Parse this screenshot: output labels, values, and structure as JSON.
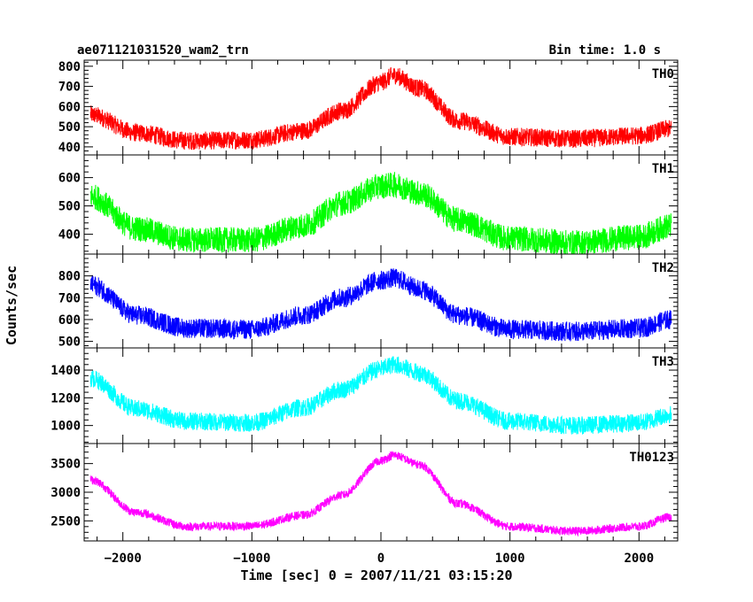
{
  "header": {
    "title": "ae071121031520_wam2_trn",
    "bin_time": "Bin time: 1.0 s"
  },
  "chart_data": {
    "type": "line",
    "xlabel": "Time [sec] 0 = 2007/11/21 03:15:20",
    "ylabel": "Counts/sec",
    "xlim": [
      -2300,
      2300
    ],
    "xticks": [
      -2000,
      -1000,
      0,
      1000,
      2000
    ],
    "xtick_labels": [
      "−2000",
      "−1000",
      "0",
      "1000",
      "2000"
    ],
    "x_range": [
      -2250,
      2250
    ],
    "peak_x": 100,
    "panels": [
      {
        "name": "TH0",
        "color": "#ff0000",
        "ylim": [
          360,
          830
        ],
        "yticks": [
          400,
          500,
          600,
          700,
          800
        ],
        "ytick_labels": [
          "400",
          "500",
          "600",
          "700",
          "800"
        ],
        "baseline": 430,
        "peak": 755,
        "start": 560,
        "end": 480,
        "noise": 45,
        "profile": [
          [
            -2250,
            560
          ],
          [
            -1900,
            470
          ],
          [
            -1500,
            430
          ],
          [
            -1000,
            435
          ],
          [
            -600,
            480
          ],
          [
            -300,
            580
          ],
          [
            0,
            720
          ],
          [
            100,
            755
          ],
          [
            300,
            690
          ],
          [
            600,
            530
          ],
          [
            1000,
            450
          ],
          [
            1500,
            440
          ],
          [
            2000,
            455
          ],
          [
            2250,
            490
          ]
        ]
      },
      {
        "name": "TH1",
        "color": "#00ff00",
        "ylim": [
          330,
          680
        ],
        "yticks": [
          400,
          500,
          600
        ],
        "ytick_labels": [
          "400",
          "500",
          "600"
        ],
        "baseline": 375,
        "peak": 575,
        "start": 535,
        "end": 430,
        "noise": 45,
        "profile": [
          [
            -2250,
            535
          ],
          [
            -1900,
            420
          ],
          [
            -1500,
            380
          ],
          [
            -1000,
            380
          ],
          [
            -600,
            430
          ],
          [
            -300,
            510
          ],
          [
            0,
            570
          ],
          [
            100,
            575
          ],
          [
            300,
            545
          ],
          [
            600,
            450
          ],
          [
            1000,
            385
          ],
          [
            1500,
            370
          ],
          [
            2000,
            390
          ],
          [
            2250,
            430
          ]
        ]
      },
      {
        "name": "TH2",
        "color": "#0000ff",
        "ylim": [
          470,
          900
        ],
        "yticks": [
          500,
          600,
          700,
          800
        ],
        "ytick_labels": [
          "500",
          "600",
          "700",
          "800"
        ],
        "baseline": 550,
        "peak": 790,
        "start": 760,
        "end": 600,
        "noise": 45,
        "profile": [
          [
            -2250,
            760
          ],
          [
            -1900,
            620
          ],
          [
            -1500,
            560
          ],
          [
            -1000,
            555
          ],
          [
            -600,
            620
          ],
          [
            -300,
            700
          ],
          [
            0,
            780
          ],
          [
            100,
            790
          ],
          [
            300,
            740
          ],
          [
            600,
            620
          ],
          [
            1000,
            555
          ],
          [
            1500,
            545
          ],
          [
            2000,
            560
          ],
          [
            2250,
            600
          ]
        ]
      },
      {
        "name": "TH3",
        "color": "#00ffff",
        "ylim": [
          870,
          1560
        ],
        "yticks": [
          1000,
          1200,
          1400
        ],
        "ytick_labels": [
          "1000",
          "1200",
          "1400"
        ],
        "baseline": 1010,
        "peak": 1440,
        "start": 1340,
        "end": 1080,
        "noise": 65,
        "profile": [
          [
            -2250,
            1340
          ],
          [
            -1900,
            1120
          ],
          [
            -1500,
            1030
          ],
          [
            -1000,
            1020
          ],
          [
            -600,
            1130
          ],
          [
            -300,
            1260
          ],
          [
            0,
            1410
          ],
          [
            100,
            1440
          ],
          [
            300,
            1380
          ],
          [
            600,
            1180
          ],
          [
            1000,
            1030
          ],
          [
            1500,
            1000
          ],
          [
            2000,
            1020
          ],
          [
            2250,
            1080
          ]
        ]
      },
      {
        "name": "TH0123",
        "color": "#ff00ff",
        "ylim": [
          2150,
          3850
        ],
        "yticks": [
          2500,
          3000,
          3500
        ],
        "ytick_labels": [
          "2500",
          "3000",
          "3500"
        ],
        "baseline": 2390,
        "peak": 3650,
        "start": 3220,
        "end": 2570,
        "noise": 75,
        "profile": [
          [
            -2250,
            3220
          ],
          [
            -1900,
            2650
          ],
          [
            -1500,
            2400
          ],
          [
            -1000,
            2410
          ],
          [
            -600,
            2600
          ],
          [
            -300,
            2950
          ],
          [
            0,
            3550
          ],
          [
            100,
            3650
          ],
          [
            300,
            3480
          ],
          [
            600,
            2800
          ],
          [
            1000,
            2400
          ],
          [
            1500,
            2320
          ],
          [
            2000,
            2400
          ],
          [
            2250,
            2570
          ]
        ]
      }
    ]
  }
}
